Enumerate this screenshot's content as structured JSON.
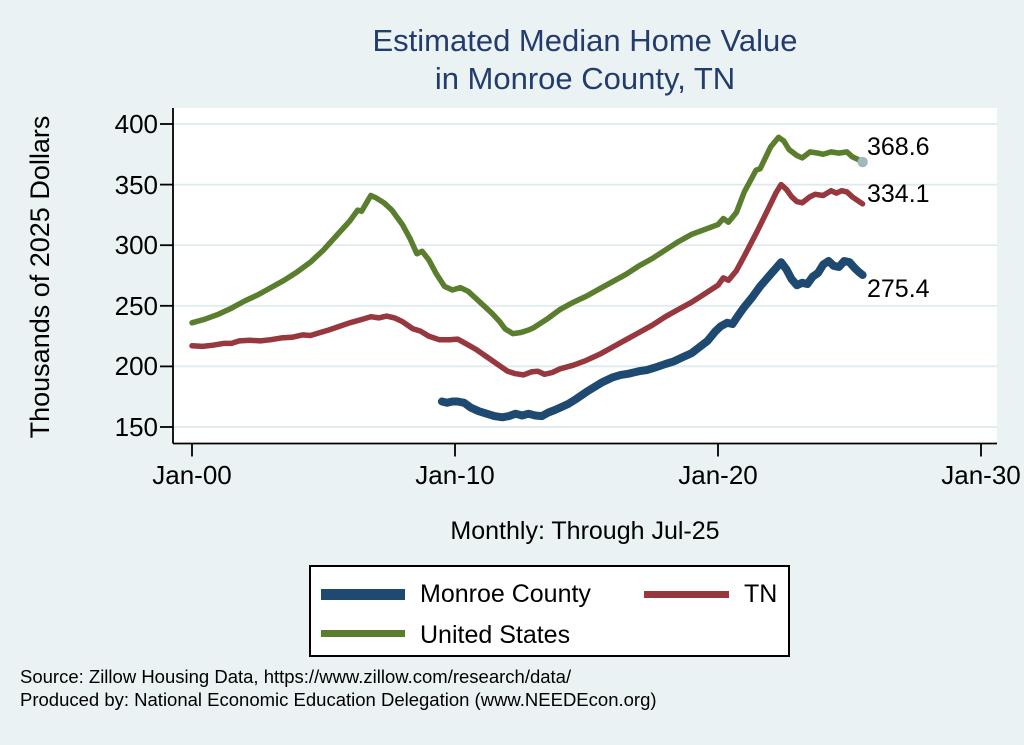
{
  "title": {
    "line1": "Estimated Median Home Value",
    "line2": "in Monroe County, TN"
  },
  "subtitle": "Monthly: Through Jul-25",
  "y_axis_title": "Thousands of 2025 Dollars",
  "source": {
    "line1": "Source: Zillow Housing Data, https://www.zillow.com/research/data/",
    "line2": "Produced by: National Economic Education Delegation (www.NEEDEcon.org)"
  },
  "colors": {
    "background": "#EAF2F3",
    "plot_background": "#FFFFFF",
    "gridline": "#DEEAED",
    "axis": "#000000",
    "title": "#233C6B",
    "monroe_county": "#1E4A72",
    "tn": "#96383E",
    "united_states": "#5A7E2E",
    "end_marker": "#9EB9BF"
  },
  "chart_data": {
    "type": "line",
    "title": "Estimated Median Home Value in Monroe County, TN",
    "xlabel": "Monthly: Through Jul-25",
    "ylabel": "Thousands of 2025 Dollars",
    "x_unit": "decimal_year",
    "x_domain": [
      2000,
      2030
    ],
    "y_domain": [
      150,
      400
    ],
    "grid": "horizontal",
    "legend_position": "bottom-box",
    "x_ticks": [
      {
        "t": 2000,
        "label": "Jan-00"
      },
      {
        "t": 2010,
        "label": "Jan-10"
      },
      {
        "t": 2020,
        "label": "Jan-20"
      },
      {
        "t": 2030,
        "label": "Jan-30"
      }
    ],
    "y_ticks": [
      150,
      200,
      250,
      300,
      350,
      400
    ],
    "series": [
      {
        "name": "Monroe County",
        "color": "#1E4A72",
        "width": 8,
        "end_label": "275.4",
        "end_marker": false,
        "points": [
          [
            2009.5,
            171
          ],
          [
            2009.7,
            170
          ],
          [
            2009.9,
            171
          ],
          [
            2010.1,
            171
          ],
          [
            2010.35,
            170
          ],
          [
            2010.6,
            166
          ],
          [
            2010.9,
            163
          ],
          [
            2011.2,
            161
          ],
          [
            2011.5,
            159
          ],
          [
            2011.8,
            158
          ],
          [
            2012.05,
            159
          ],
          [
            2012.3,
            161
          ],
          [
            2012.55,
            159.5
          ],
          [
            2012.8,
            161
          ],
          [
            2013.05,
            159.5
          ],
          [
            2013.3,
            159
          ],
          [
            2013.55,
            162
          ],
          [
            2013.8,
            164
          ],
          [
            2014.0,
            166
          ],
          [
            2014.3,
            169
          ],
          [
            2014.6,
            173
          ],
          [
            2015.0,
            179
          ],
          [
            2015.3,
            183
          ],
          [
            2015.6,
            187
          ],
          [
            2016.0,
            191
          ],
          [
            2016.3,
            193
          ],
          [
            2016.6,
            194
          ],
          [
            2017.0,
            196
          ],
          [
            2017.3,
            197
          ],
          [
            2017.6,
            199
          ],
          [
            2018.0,
            202
          ],
          [
            2018.3,
            204
          ],
          [
            2018.6,
            207
          ],
          [
            2019.0,
            211
          ],
          [
            2019.3,
            216
          ],
          [
            2019.6,
            221
          ],
          [
            2019.9,
            229
          ],
          [
            2020.1,
            233
          ],
          [
            2020.35,
            236
          ],
          [
            2020.55,
            235
          ],
          [
            2020.8,
            243
          ],
          [
            2021.0,
            249
          ],
          [
            2021.3,
            257
          ],
          [
            2021.6,
            266
          ],
          [
            2022.0,
            276
          ],
          [
            2022.2,
            281
          ],
          [
            2022.4,
            286
          ],
          [
            2022.6,
            280
          ],
          [
            2022.8,
            272
          ],
          [
            2023.0,
            267
          ],
          [
            2023.2,
            269
          ],
          [
            2023.4,
            268
          ],
          [
            2023.6,
            274
          ],
          [
            2023.8,
            277
          ],
          [
            2024.0,
            284
          ],
          [
            2024.2,
            287
          ],
          [
            2024.4,
            283
          ],
          [
            2024.6,
            282
          ],
          [
            2024.8,
            287
          ],
          [
            2025.0,
            286
          ],
          [
            2025.2,
            281
          ],
          [
            2025.35,
            278
          ],
          [
            2025.5,
            275.4
          ]
        ]
      },
      {
        "name": "TN",
        "color": "#96383E",
        "width": 5.5,
        "end_label": "334.1",
        "end_marker": false,
        "points": [
          [
            2000.0,
            217
          ],
          [
            2000.4,
            216.5
          ],
          [
            2000.8,
            217.5
          ],
          [
            2001.2,
            219
          ],
          [
            2001.5,
            219
          ],
          [
            2001.8,
            221
          ],
          [
            2002.2,
            221.5
          ],
          [
            2002.6,
            221
          ],
          [
            2003.0,
            222
          ],
          [
            2003.4,
            223.5
          ],
          [
            2003.8,
            224
          ],
          [
            2004.2,
            226
          ],
          [
            2004.5,
            225.5
          ],
          [
            2004.8,
            227.5
          ],
          [
            2005.2,
            230
          ],
          [
            2005.6,
            233
          ],
          [
            2006.0,
            236
          ],
          [
            2006.5,
            239
          ],
          [
            2006.8,
            241
          ],
          [
            2007.1,
            240
          ],
          [
            2007.4,
            241.5
          ],
          [
            2007.7,
            240
          ],
          [
            2008.0,
            237
          ],
          [
            2008.4,
            231
          ],
          [
            2008.7,
            229
          ],
          [
            2009.0,
            225
          ],
          [
            2009.4,
            222
          ],
          [
            2009.8,
            222
          ],
          [
            2010.1,
            222.5
          ],
          [
            2010.4,
            219
          ],
          [
            2010.8,
            214
          ],
          [
            2011.2,
            208
          ],
          [
            2011.6,
            202
          ],
          [
            2012.0,
            196
          ],
          [
            2012.3,
            194
          ],
          [
            2012.6,
            193
          ],
          [
            2012.9,
            195.5
          ],
          [
            2013.15,
            196
          ],
          [
            2013.4,
            193.5
          ],
          [
            2013.7,
            195
          ],
          [
            2014.0,
            198
          ],
          [
            2014.5,
            201
          ],
          [
            2015.0,
            205
          ],
          [
            2015.5,
            210
          ],
          [
            2016.0,
            216
          ],
          [
            2016.5,
            222
          ],
          [
            2017.0,
            228
          ],
          [
            2017.5,
            234
          ],
          [
            2018.0,
            241
          ],
          [
            2018.5,
            247
          ],
          [
            2019.0,
            253
          ],
          [
            2019.5,
            260
          ],
          [
            2020.0,
            267
          ],
          [
            2020.2,
            273
          ],
          [
            2020.4,
            271
          ],
          [
            2020.7,
            279
          ],
          [
            2021.0,
            291
          ],
          [
            2021.5,
            312
          ],
          [
            2022.0,
            334
          ],
          [
            2022.2,
            343
          ],
          [
            2022.4,
            350
          ],
          [
            2022.6,
            346
          ],
          [
            2022.8,
            340
          ],
          [
            2023.0,
            336
          ],
          [
            2023.2,
            335
          ],
          [
            2023.5,
            340
          ],
          [
            2023.7,
            342
          ],
          [
            2024.0,
            341
          ],
          [
            2024.3,
            345
          ],
          [
            2024.5,
            343
          ],
          [
            2024.7,
            345
          ],
          [
            2024.9,
            344
          ],
          [
            2025.1,
            340
          ],
          [
            2025.3,
            337
          ],
          [
            2025.5,
            334.1
          ]
        ]
      },
      {
        "name": "United States",
        "color": "#5A7E2E",
        "width": 5.5,
        "end_label": "368.6",
        "end_marker": true,
        "points": [
          [
            2000.0,
            236
          ],
          [
            2000.5,
            239
          ],
          [
            2001.0,
            243
          ],
          [
            2001.5,
            248
          ],
          [
            2002.0,
            254
          ],
          [
            2002.5,
            259
          ],
          [
            2003.0,
            265
          ],
          [
            2003.5,
            271
          ],
          [
            2004.0,
            278
          ],
          [
            2004.5,
            286
          ],
          [
            2005.0,
            296
          ],
          [
            2005.5,
            308
          ],
          [
            2006.0,
            320
          ],
          [
            2006.3,
            329
          ],
          [
            2006.45,
            328
          ],
          [
            2006.8,
            341
          ],
          [
            2007.0,
            339
          ],
          [
            2007.3,
            335
          ],
          [
            2007.6,
            329
          ],
          [
            2008.0,
            317
          ],
          [
            2008.3,
            305
          ],
          [
            2008.55,
            293
          ],
          [
            2008.75,
            295
          ],
          [
            2009.0,
            288
          ],
          [
            2009.3,
            276
          ],
          [
            2009.6,
            266
          ],
          [
            2009.9,
            263
          ],
          [
            2010.2,
            265
          ],
          [
            2010.5,
            262
          ],
          [
            2010.8,
            256
          ],
          [
            2011.1,
            250
          ],
          [
            2011.4,
            244
          ],
          [
            2011.7,
            237
          ],
          [
            2011.9,
            231
          ],
          [
            2012.2,
            227
          ],
          [
            2012.5,
            228
          ],
          [
            2012.8,
            230
          ],
          [
            2013.0,
            232
          ],
          [
            2013.5,
            239
          ],
          [
            2014.0,
            247
          ],
          [
            2014.5,
            253
          ],
          [
            2015.0,
            258
          ],
          [
            2015.5,
            264
          ],
          [
            2016.0,
            270
          ],
          [
            2016.5,
            276
          ],
          [
            2017.0,
            283
          ],
          [
            2017.5,
            289
          ],
          [
            2018.0,
            296
          ],
          [
            2018.5,
            303
          ],
          [
            2019.0,
            309
          ],
          [
            2019.5,
            313
          ],
          [
            2020.0,
            317
          ],
          [
            2020.2,
            322
          ],
          [
            2020.4,
            319
          ],
          [
            2020.7,
            327
          ],
          [
            2021.0,
            344
          ],
          [
            2021.3,
            356
          ],
          [
            2021.45,
            362
          ],
          [
            2021.6,
            363
          ],
          [
            2022.0,
            381
          ],
          [
            2022.3,
            389
          ],
          [
            2022.5,
            386
          ],
          [
            2022.7,
            379
          ],
          [
            2023.0,
            374
          ],
          [
            2023.2,
            372
          ],
          [
            2023.5,
            377
          ],
          [
            2023.8,
            376
          ],
          [
            2024.0,
            375
          ],
          [
            2024.3,
            377
          ],
          [
            2024.6,
            376
          ],
          [
            2024.9,
            377
          ],
          [
            2025.1,
            373
          ],
          [
            2025.3,
            371
          ],
          [
            2025.5,
            368.6
          ]
        ]
      }
    ]
  }
}
